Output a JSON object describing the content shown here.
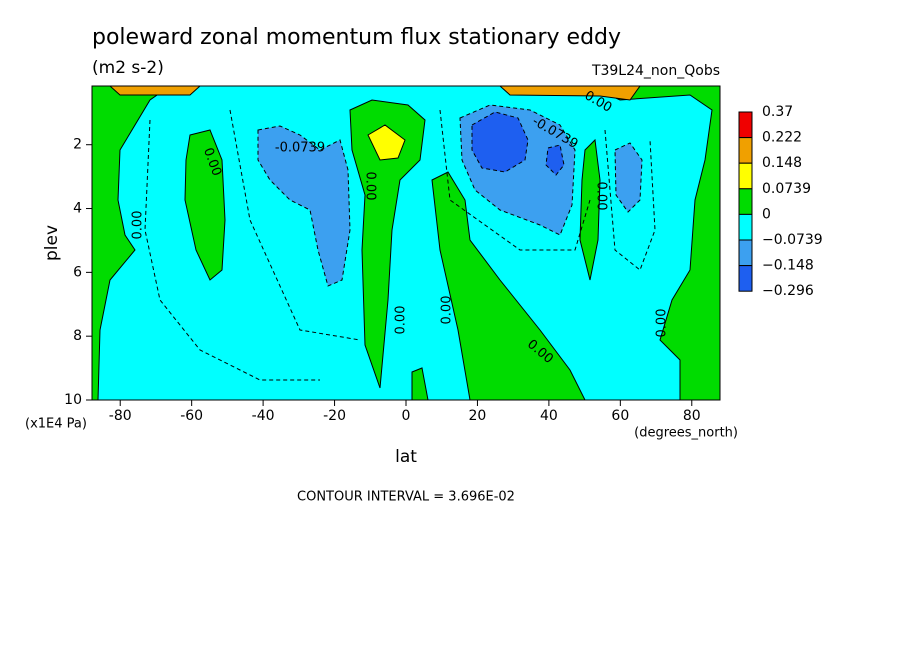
{
  "chart_data": {
    "type": "contour",
    "title": "poleward zonal momentum flux stationary eddy",
    "subtitle": "(m2 s-2)",
    "run_label": "T39L24_non_Qobs",
    "x_label": "lat",
    "x_unit": "(degrees_north)",
    "y_label": "plev",
    "y_unit": "(x1E4 Pa)",
    "footer": "CONTOUR INTERVAL = 3.696E-02",
    "xlim": [
      -87.9,
      87.9
    ],
    "xticks": [
      -80,
      -60,
      -40,
      -20,
      0,
      20,
      40,
      60,
      80
    ],
    "ylim": [
      10,
      0.16
    ],
    "yticks": [
      2,
      4,
      6,
      8,
      10
    ],
    "levels": [
      0.37,
      0.222,
      0.148,
      0.0739,
      0,
      {
        "value": -0.0739,
        "label": "−0.0739"
      },
      {
        "value": -0.148,
        "label": "−0.148"
      },
      {
        "value": -0.296,
        "label": "−0.296"
      }
    ],
    "level_colors": [
      "#f00000",
      "#f0a000",
      "#ffff00",
      "#00dc00",
      "#00ffff",
      "#3ca0f0",
      "#1e5ff0"
    ],
    "contour_labels": [
      "0.00",
      "-0.0739",
      "0.00",
      "0.00",
      "0.00",
      "0.00",
      "0.00",
      "0.00",
      "-0.0739",
      "0.00",
      "0.00"
    ]
  }
}
